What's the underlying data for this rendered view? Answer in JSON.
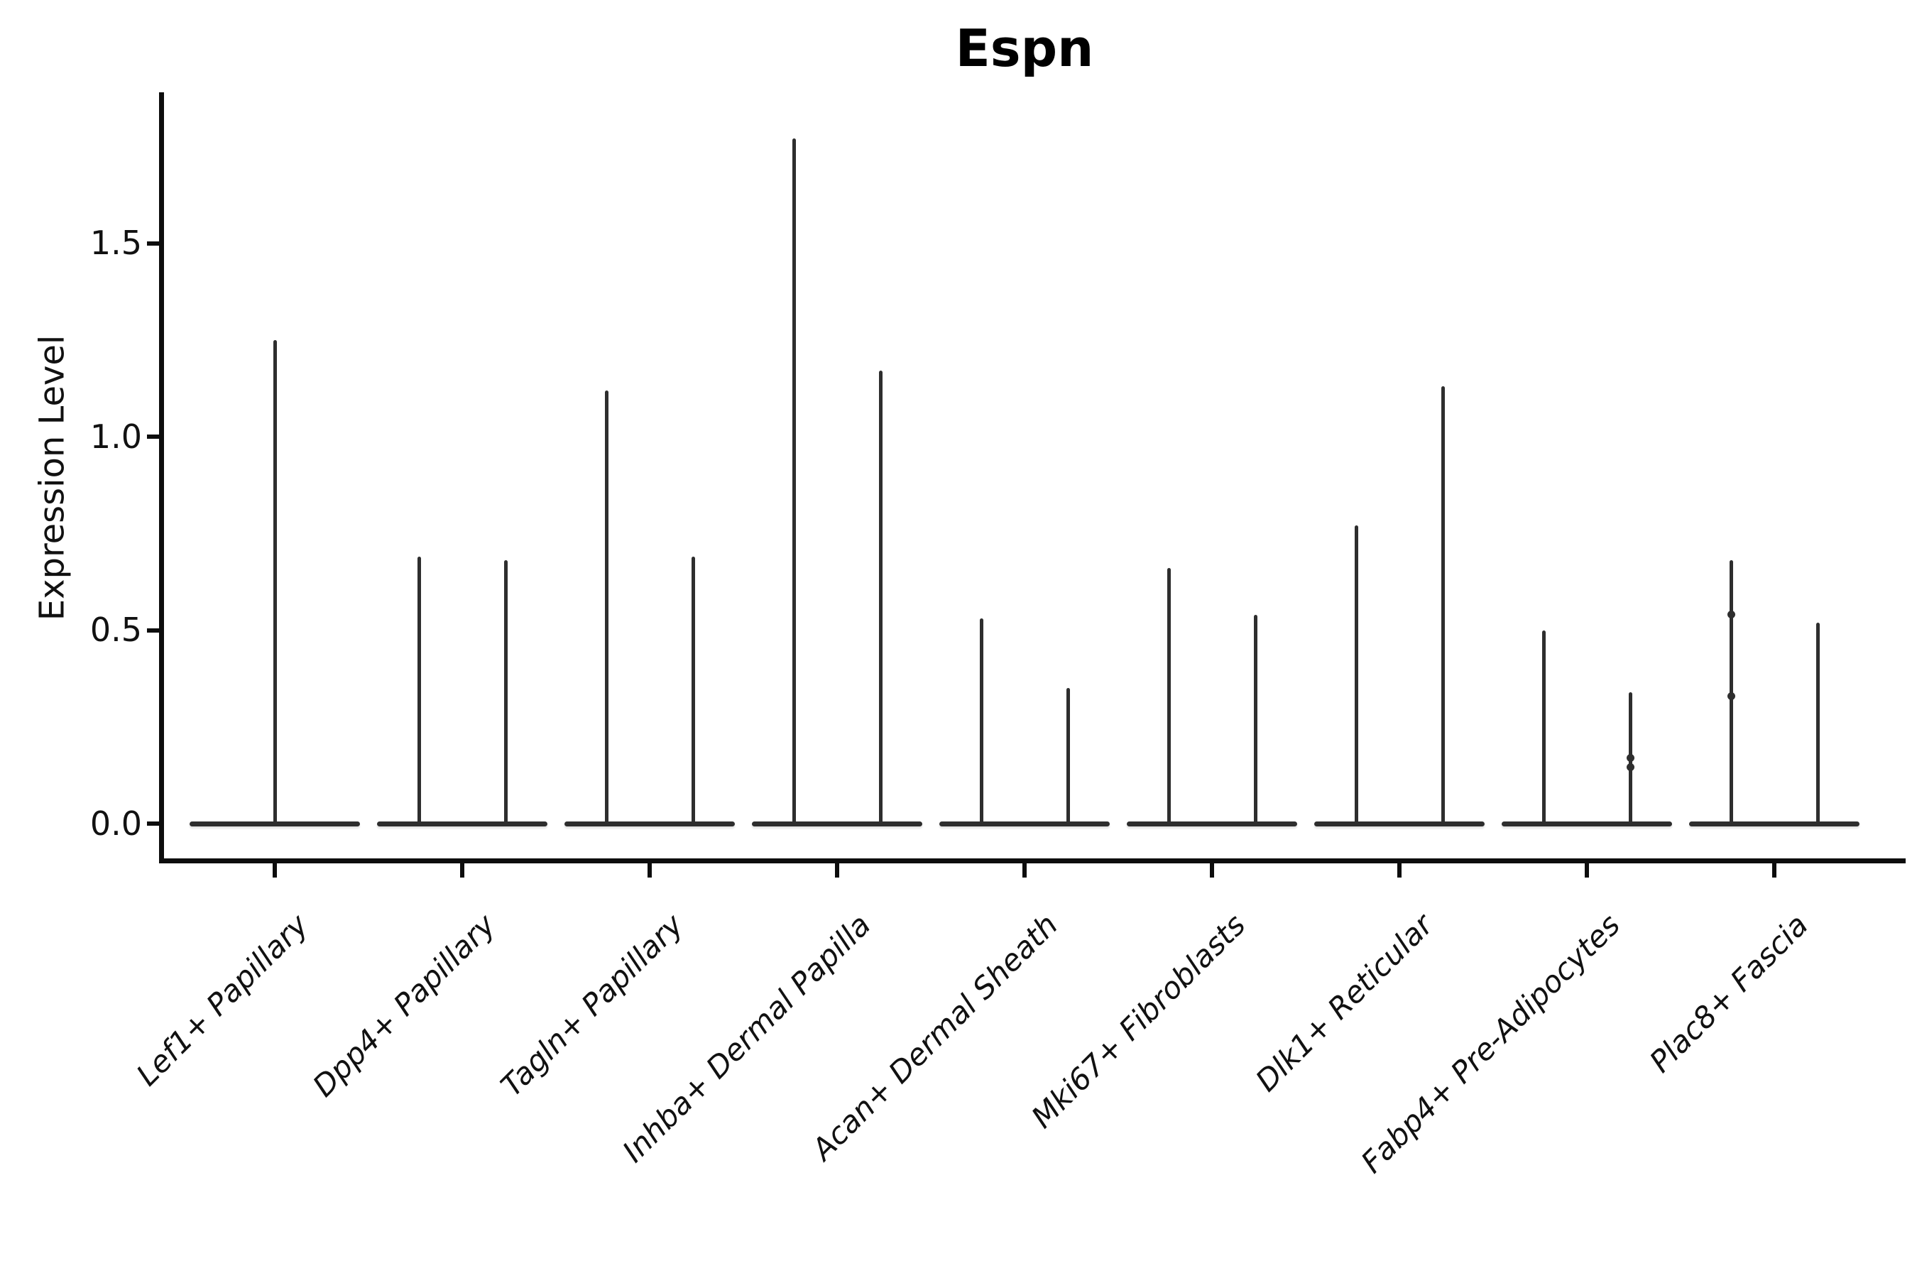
{
  "title": "Espn",
  "axes": {
    "ylabel": "Expression Level",
    "ytick_labels": [
      "0.0",
      "0.5",
      "1.0",
      "1.5"
    ],
    "ytick_values": [
      0.0,
      0.5,
      1.0,
      1.5
    ]
  },
  "style": {
    "violin_color": "#2e2e2e",
    "axis_color": "#0d0d0d",
    "text_color": "#111111",
    "background": "#ffffff"
  },
  "chart_data": {
    "type": "violin",
    "title": "Espn",
    "xlabel": "",
    "ylabel": "Expression Level",
    "ylim": [
      0,
      1.9
    ],
    "yticks": [
      0.0,
      0.5,
      1.0,
      1.5
    ],
    "grid": false,
    "legend": "none",
    "description": "Collapsed single-cell expression violins: bulk of cells at 0 (flat line across each category), thin vertical spikes reaching each violin's maximum expression value. First category has one centered violin; all others have two side-by-side violins.",
    "categories": [
      "Lef1+ Papillary",
      "Dpp4+ Papillary",
      "Tagln+ Papillary",
      "Inhba+ Dermal Papilla",
      "Acan+ Dermal Sheath",
      "Mki67+ Fibroblasts",
      "Dlk1+ Reticular",
      "Fabp4+ Pre-Adipocytes",
      "Plac8+ Fascia"
    ],
    "violins": [
      {
        "category": "Lef1+ Papillary",
        "spike_maxima": [
          1.25
        ]
      },
      {
        "category": "Dpp4+ Papillary",
        "spike_maxima": [
          0.69,
          0.68
        ]
      },
      {
        "category": "Tagln+ Papillary",
        "spike_maxima": [
          1.12,
          0.69
        ]
      },
      {
        "category": "Inhba+ Dermal Papilla",
        "spike_maxima": [
          1.77,
          1.17
        ]
      },
      {
        "category": "Acan+ Dermal Sheath",
        "spike_maxima": [
          0.53,
          0.35
        ]
      },
      {
        "category": "Mki67+ Fibroblasts",
        "spike_maxima": [
          0.66,
          0.54
        ]
      },
      {
        "category": "Dlk1+ Reticular",
        "spike_maxima": [
          0.77,
          1.13
        ]
      },
      {
        "category": "Fabp4+ Pre-Adipocytes",
        "spike_maxima": [
          0.5,
          0.34
        ]
      },
      {
        "category": "Plac8+ Fascia",
        "spike_maxima": [
          0.68,
          0.52
        ]
      }
    ],
    "jitter_points": [
      {
        "category_index": 7,
        "violin_index": 1,
        "values": [
          0.17,
          0.145
        ]
      },
      {
        "category_index": 8,
        "violin_index": 0,
        "values": [
          0.54,
          0.33
        ]
      }
    ],
    "baseline_value": 0.0
  }
}
